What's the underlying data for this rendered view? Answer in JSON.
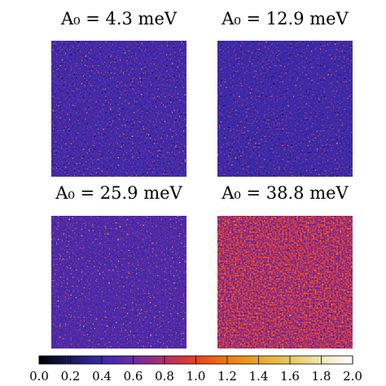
{
  "chart_data": {
    "type": "heatmap-grid",
    "panels": [
      {
        "title": "A₀ = 4.3 meV"
      },
      {
        "title": "A₀ = 12.9 meV"
      },
      {
        "title": "A₀ = 25.9 meV"
      },
      {
        "title": "A₀ = 38.8 meV"
      }
    ],
    "colormap": [
      "#000000",
      "#1a1a5e",
      "#3b2aa8",
      "#6a2ba8",
      "#b0306a",
      "#e8401e",
      "#f07a10",
      "#e8a828",
      "#e8c860",
      "#f0e8b0",
      "#ffffff"
    ],
    "colorbar_lim": [
      0,
      2
    ],
    "colorbar_ticks": [
      {
        "value": 0,
        "label": "0.0"
      },
      0.2,
      0.4,
      0.6,
      0.8,
      {
        "value": 1,
        "label": "1.0"
      },
      1.2,
      1.4,
      1.6,
      1.8,
      {
        "value": 2,
        "label": "2.0"
      }
    ]
  }
}
